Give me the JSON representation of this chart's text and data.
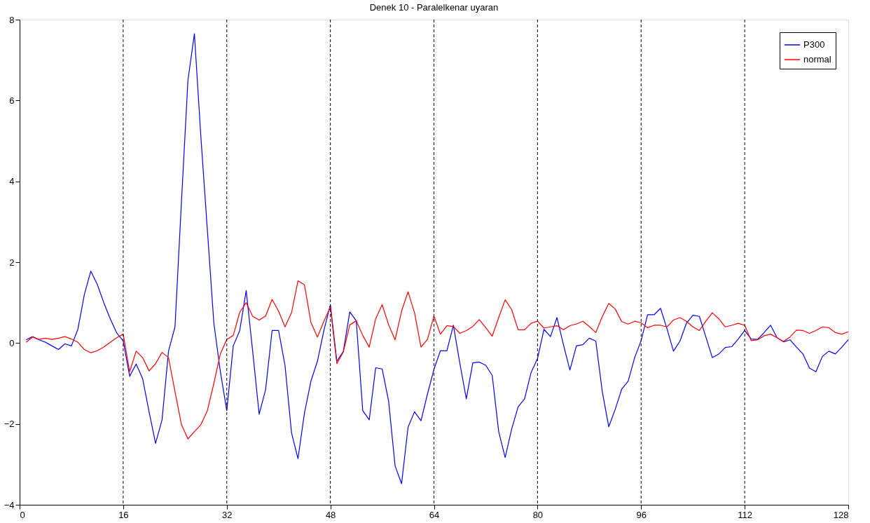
{
  "chart_data": {
    "type": "line",
    "title": "Denek 10 - Paralelkenar uyaran",
    "x": [
      1,
      2,
      3,
      4,
      5,
      6,
      7,
      8,
      9,
      10,
      11,
      12,
      13,
      14,
      15,
      16,
      17,
      18,
      19,
      20,
      21,
      22,
      23,
      24,
      25,
      26,
      27,
      28,
      29,
      30,
      31,
      32,
      33,
      34,
      35,
      36,
      37,
      38,
      39,
      40,
      41,
      42,
      43,
      44,
      45,
      46,
      47,
      48,
      49,
      50,
      51,
      52,
      53,
      54,
      55,
      56,
      57,
      58,
      59,
      60,
      61,
      62,
      63,
      64,
      65,
      66,
      67,
      68,
      69,
      70,
      71,
      72,
      73,
      74,
      75,
      76,
      77,
      78,
      79,
      80,
      81,
      82,
      83,
      84,
      85,
      86,
      87,
      88,
      89,
      90,
      91,
      92,
      93,
      94,
      95,
      96,
      97,
      98,
      99,
      100,
      101,
      102,
      103,
      104,
      105,
      106,
      107,
      108,
      109,
      110,
      111,
      112,
      113,
      114,
      115,
      116,
      117,
      118,
      119,
      120,
      121,
      122,
      123,
      124,
      125,
      126,
      127,
      128
    ],
    "series": [
      {
        "name": "P300",
        "color": "#0000ff",
        "values": [
          0.08,
          0.16,
          0.08,
          0.02,
          -0.07,
          -0.16,
          -0.02,
          -0.07,
          0.34,
          1.2,
          1.78,
          1.45,
          1.0,
          0.6,
          0.25,
          0.05,
          -0.82,
          -0.52,
          -0.88,
          -1.7,
          -2.48,
          -1.9,
          -0.2,
          0.4,
          3.5,
          6.5,
          7.65,
          5.1,
          2.8,
          0.5,
          -0.7,
          -1.67,
          -0.07,
          0.31,
          1.3,
          -0.2,
          -1.76,
          -1.15,
          0.31,
          0.31,
          -0.56,
          -2.22,
          -2.86,
          -1.73,
          -0.94,
          -0.45,
          0.31,
          0.95,
          -0.45,
          -0.21,
          0.77,
          0.55,
          -1.67,
          -1.9,
          -0.61,
          -0.64,
          -1.44,
          -3.04,
          -3.48,
          -2.08,
          -1.7,
          -1.92,
          -1.26,
          -0.65,
          -0.19,
          -0.19,
          0.44,
          -0.5,
          -1.38,
          -0.49,
          -0.47,
          -0.55,
          -0.8,
          -2.19,
          -2.83,
          -2.13,
          -1.58,
          -1.38,
          -0.73,
          -0.38,
          0.34,
          0.16,
          0.63,
          -0.04,
          -0.67,
          -0.07,
          -0.04,
          0.12,
          0.05,
          -1.2,
          -2.07,
          -1.64,
          -1.14,
          -0.94,
          -0.36,
          0.06,
          0.7,
          0.7,
          0.86,
          0.35,
          -0.2,
          0.05,
          0.49,
          0.69,
          0.66,
          0.15,
          -0.36,
          -0.27,
          -0.11,
          -0.09,
          0.1,
          0.31,
          0.1,
          0.09,
          0.26,
          0.44,
          0.13,
          0.03,
          0.08,
          -0.1,
          -0.27,
          -0.62,
          -0.71,
          -0.33,
          -0.2,
          -0.27,
          -0.1,
          0.08
        ]
      },
      {
        "name": "normal",
        "color": "#ff0000",
        "values": [
          0.02,
          0.15,
          0.09,
          0.12,
          0.09,
          0.12,
          0.16,
          0.1,
          0.02,
          -0.16,
          -0.24,
          -0.19,
          -0.1,
          0.02,
          0.13,
          0.22,
          -0.71,
          -0.2,
          -0.36,
          -0.69,
          -0.51,
          -0.23,
          -0.36,
          -1.2,
          -2.02,
          -2.37,
          -2.19,
          -2.02,
          -1.67,
          -1.0,
          -0.27,
          0.09,
          0.19,
          0.76,
          1.0,
          0.66,
          0.57,
          0.67,
          1.08,
          0.79,
          0.4,
          0.75,
          1.54,
          1.44,
          0.51,
          0.15,
          0.54,
          0.89,
          -0.51,
          -0.22,
          0.45,
          0.55,
          0.19,
          -0.1,
          0.6,
          0.95,
          0.45,
          0.08,
          0.79,
          1.27,
          0.75,
          -0.1,
          0.09,
          0.67,
          0.22,
          0.43,
          0.41,
          0.24,
          0.31,
          0.41,
          0.58,
          0.38,
          0.17,
          0.63,
          1.07,
          0.83,
          0.33,
          0.33,
          0.49,
          0.54,
          0.37,
          0.4,
          0.43,
          0.33,
          0.43,
          0.47,
          0.54,
          0.41,
          0.26,
          0.65,
          0.98,
          0.84,
          0.53,
          0.47,
          0.54,
          0.5,
          0.38,
          0.44,
          0.44,
          0.4,
          0.57,
          0.63,
          0.54,
          0.4,
          0.31,
          0.54,
          0.75,
          0.6,
          0.4,
          0.44,
          0.49,
          0.44,
          0.06,
          0.08,
          0.18,
          0.22,
          0.13,
          0.04,
          0.15,
          0.32,
          0.31,
          0.24,
          0.31,
          0.4,
          0.38,
          0.26,
          0.22,
          0.28
        ]
      }
    ],
    "xlim": [
      0,
      128
    ],
    "xticks": [
      0,
      16,
      32,
      48,
      64,
      80,
      96,
      112,
      128
    ],
    "ylim": [
      -4,
      8
    ],
    "yticks": [
      -4,
      -2,
      0,
      2,
      4,
      6,
      8
    ],
    "ref_lines": [
      {
        "axis": "x",
        "value": 16,
        "color": "#000000",
        "line_style": "dashed"
      },
      {
        "axis": "x",
        "value": 32,
        "color": "#000000",
        "line_style": "dashed"
      },
      {
        "axis": "x",
        "value": 48,
        "color": "#000000",
        "line_style": "dashed"
      },
      {
        "axis": "x",
        "value": 64,
        "color": "#000000",
        "line_style": "dashed"
      },
      {
        "axis": "x",
        "value": 80,
        "color": "#000000",
        "line_style": "dashed"
      },
      {
        "axis": "x",
        "value": 96,
        "color": "#000000",
        "line_style": "dashed"
      },
      {
        "axis": "x",
        "value": 112,
        "color": "#000000",
        "line_style": "dashed"
      }
    ],
    "grid": false,
    "legend": "top right",
    "marker": "none",
    "line_style": "solid"
  }
}
